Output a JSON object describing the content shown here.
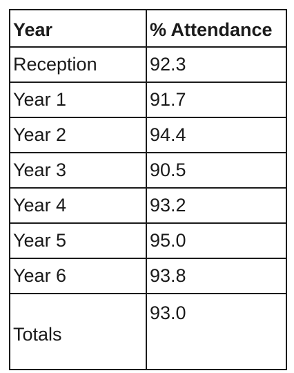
{
  "table": {
    "headers": [
      "Year",
      "% Attendance"
    ],
    "rows": [
      {
        "year": "Reception",
        "attendance": "92.3"
      },
      {
        "year": "Year 1",
        "attendance": "91.7"
      },
      {
        "year": "Year 2",
        "attendance": "94.4"
      },
      {
        "year": "Year 3",
        "attendance": "90.5"
      },
      {
        "year": "Year 4",
        "attendance": "93.2"
      },
      {
        "year": "Year 5",
        "attendance": "95.0"
      },
      {
        "year": "Year 6",
        "attendance": "93.8"
      }
    ],
    "totals": {
      "label": "Totals",
      "attendance": "93.0"
    }
  }
}
